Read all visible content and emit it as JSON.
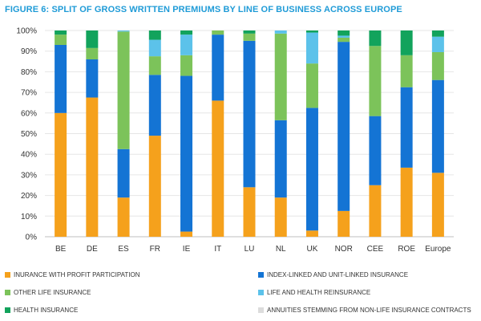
{
  "chart_data": {
    "type": "bar",
    "stacked": true,
    "title": "FIGURE 6: SPLIT OF GROSS WRITTEN PREMIUMS BY LINE OF BUSINESS ACROSS EUROPE",
    "xlabel": "",
    "ylabel": "",
    "ylim": [
      0,
      100
    ],
    "yticks": [
      "0%",
      "10%",
      "20%",
      "30%",
      "40%",
      "50%",
      "60%",
      "70%",
      "80%",
      "90%",
      "100%"
    ],
    "grid": "horizontal",
    "legend_position": "bottom",
    "categories": [
      "BE",
      "DE",
      "ES",
      "FR",
      "IE",
      "IT",
      "LU",
      "NL",
      "UK",
      "NOR",
      "CEE",
      "ROE",
      "Europe"
    ],
    "series": [
      {
        "name": "INURANCE WITH PROFIT PARTICIPATION",
        "color": "#f5a11c",
        "values": [
          60,
          67.5,
          19,
          49,
          2.5,
          66,
          24,
          19,
          3,
          12.5,
          25,
          33.5,
          31
        ]
      },
      {
        "name": "INDEX-LINKED AND UNIT-LINKED INSURANCE",
        "color": "#1474d4",
        "values": [
          33,
          18.5,
          23.5,
          29.5,
          75.5,
          32,
          71,
          37.5,
          59.5,
          82,
          33.5,
          39,
          45
        ]
      },
      {
        "name": "OTHER LIFE INSURANCE",
        "color": "#7cc35a",
        "values": [
          5,
          5.5,
          57,
          9,
          10,
          2,
          3.5,
          42,
          21.5,
          2,
          34,
          15.5,
          13.5
        ]
      },
      {
        "name": "LIFE AND HEALTH REINSURANCE",
        "color": "#5cc2ea",
        "values": [
          0,
          0,
          0.5,
          8,
          10,
          0,
          0,
          1.5,
          15,
          1,
          0,
          0,
          7.5
        ]
      },
      {
        "name": "HEALTH INSURANCE",
        "color": "#12a35c",
        "values": [
          2,
          8.5,
          0,
          4.5,
          2,
          0,
          1.5,
          0,
          1,
          2.5,
          7.5,
          12,
          3
        ]
      },
      {
        "name": "ANNUITIES STEMMING FROM NON-LIFE INSURANCE CONTRACTS",
        "color": "#dcdcdc",
        "values": [
          0,
          0,
          0,
          0,
          0,
          0,
          0,
          0,
          0,
          0,
          0,
          0,
          0
        ]
      }
    ]
  }
}
